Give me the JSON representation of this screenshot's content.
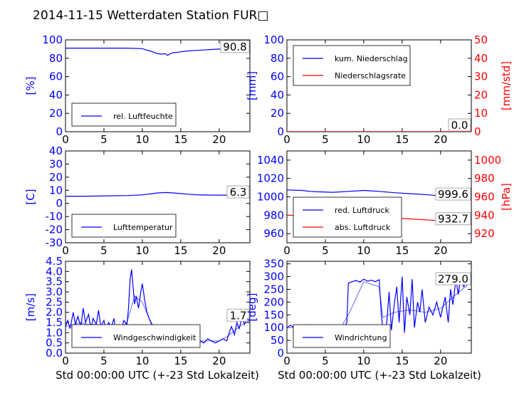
{
  "figure": {
    "title": "2014-11-15 Wetterdaten Station FUR□",
    "colors": {
      "left_axis": "#0000ff",
      "right_axis": "#ff0000",
      "precip_rate": "#ff0000",
      "abs_pressure": "#ff0000",
      "windspeed_avg": "#8080ff",
      "winddir_avg": "#8080ff"
    }
  },
  "chart_data": [
    {
      "id": "humidity",
      "type": "line",
      "xlim": [
        0,
        24
      ],
      "x_ticks": [
        0,
        5,
        10,
        15,
        20
      ],
      "ylabel": "[%]",
      "ylim": [
        0,
        100
      ],
      "y_ticks": [
        0,
        20,
        40,
        60,
        80,
        100
      ],
      "legend": "bottom-left",
      "last_value": "90.8",
      "series": [
        {
          "name": "rel. Luftfeuchte",
          "axis": "left",
          "color": "#0000ff",
          "x": [
            0,
            2,
            4,
            6,
            8,
            10,
            10.5,
            11,
            11.5,
            12,
            12.5,
            13,
            13.3,
            13.6,
            14,
            15,
            16,
            17,
            18,
            19,
            20,
            21,
            22,
            23,
            24
          ],
          "y": [
            91,
            91,
            91,
            91,
            91,
            90.5,
            89,
            88,
            86.5,
            85,
            84.5,
            85,
            83,
            85,
            86,
            87,
            88,
            88.5,
            89,
            89.5,
            90,
            90.3,
            90.5,
            90.8,
            90.8
          ]
        }
      ]
    },
    {
      "id": "precipitation",
      "type": "line",
      "xlim": [
        0,
        24
      ],
      "x_ticks": [
        0,
        5,
        10,
        15,
        20
      ],
      "ylabel": "[mm]",
      "ylim": [
        0,
        100
      ],
      "y_ticks": [
        0,
        20,
        40,
        60,
        80,
        100
      ],
      "ylabel2": "[mm/std]",
      "ylim2": [
        0,
        50
      ],
      "y_ticks2": [
        0,
        10,
        20,
        30,
        40,
        50
      ],
      "legend": "top-left",
      "last_value": "0.0",
      "last_value2": "0.0",
      "series": [
        {
          "name": "kum. Niederschlag",
          "axis": "left",
          "color": "#0000ff",
          "x": [
            0,
            24
          ],
          "y": [
            0,
            0
          ]
        },
        {
          "name": "Niederschlagsrate",
          "axis": "right",
          "color": "#ff0000",
          "x": [
            0,
            24
          ],
          "y": [
            0,
            0
          ]
        }
      ]
    },
    {
      "id": "temperature",
      "type": "line",
      "xlim": [
        0,
        24
      ],
      "x_ticks": [
        0,
        5,
        10,
        15,
        20
      ],
      "ylabel": "[C]",
      "ylim": [
        -30,
        40
      ],
      "y_ticks": [
        -30,
        -20,
        -10,
        0,
        10,
        20,
        30,
        40
      ],
      "legend": "bottom-left",
      "last_value": "6.3",
      "series": [
        {
          "name": "Lufttemperatur",
          "axis": "left",
          "color": "#0000ff",
          "x": [
            0,
            2,
            4,
            6,
            8,
            10,
            11,
            12,
            13,
            14,
            15,
            16,
            17,
            18,
            20,
            22,
            24
          ],
          "y": [
            5.5,
            5.5,
            5.6,
            5.8,
            6.0,
            6.5,
            7.2,
            8.0,
            8.3,
            8.0,
            7.5,
            7.0,
            6.6,
            6.4,
            6.3,
            6.3,
            6.3
          ]
        }
      ]
    },
    {
      "id": "pressure",
      "type": "line",
      "xlim": [
        0,
        24
      ],
      "x_ticks": [
        0,
        5,
        10,
        15,
        20
      ],
      "ylim": [
        950,
        1050
      ],
      "y_ticks": [
        960,
        980,
        1000,
        1020,
        1040
      ],
      "ylabel2": "[hPa]",
      "ylim2": [
        910,
        1010
      ],
      "y_ticks2": [
        920,
        940,
        960,
        980,
        1000
      ],
      "legend": "bottom-left",
      "last_value": "999.6",
      "last_value2": "932.7",
      "series": [
        {
          "name": "red. Luftdruck",
          "axis": "left",
          "color": "#0000ff",
          "x": [
            0,
            1,
            2,
            3,
            4,
            6,
            8,
            10,
            11,
            12,
            14,
            16,
            18,
            20,
            22,
            24
          ],
          "y": [
            1007.5,
            1007.3,
            1007,
            1006,
            1005.5,
            1005,
            1006,
            1007,
            1006.5,
            1006,
            1004.5,
            1003.5,
            1002.5,
            1001,
            1000,
            999.6
          ]
        },
        {
          "name": "abs. Luftdruck",
          "axis": "right",
          "color": "#ff0000",
          "x": [
            0,
            1,
            2,
            4,
            6,
            8,
            10,
            12,
            14,
            16,
            18,
            20,
            22,
            24
          ],
          "y": [
            940,
            939.8,
            939.5,
            938.5,
            938,
            938,
            938.5,
            938,
            937,
            936,
            935,
            934,
            933,
            932.7
          ]
        }
      ]
    },
    {
      "id": "windspeed",
      "type": "line",
      "xlim": [
        0,
        24
      ],
      "x_ticks": [
        0,
        5,
        10,
        15,
        20
      ],
      "ylabel": "[m/s]",
      "ylim": [
        0,
        4.5
      ],
      "y_ticks": [
        0.0,
        0.5,
        1.0,
        1.5,
        2.0,
        2.5,
        3.0,
        3.5,
        4.0,
        4.5
      ],
      "legend": "bottom-left",
      "last_value": "1.7",
      "series": [
        {
          "name": "Windgeschwindigkeit",
          "axis": "left",
          "color": "#0000ff",
          "x": [
            0,
            0.3,
            0.6,
            1,
            1.3,
            1.6,
            2,
            2.3,
            2.6,
            3,
            3.3,
            3.6,
            4,
            4.3,
            4.6,
            5,
            5.3,
            5.6,
            6,
            6.3,
            6.6,
            7,
            7.3,
            7.6,
            8,
            8.2,
            8.4,
            8.6,
            8.8,
            9,
            9.2,
            9.5,
            9.8,
            10,
            10.3,
            10.6,
            11,
            11.3,
            11.6,
            12,
            12.3,
            12.6,
            13,
            13.3,
            13.6,
            14,
            14.5,
            15,
            15.5,
            16,
            16.5,
            17,
            17.5,
            18,
            18.5,
            19,
            19.5,
            20,
            20.5,
            21,
            21.3,
            21.6,
            22,
            22.3,
            22.6,
            23,
            23.3,
            23.6,
            24
          ],
          "y": [
            1.3,
            1.6,
            1.2,
            2.0,
            1.4,
            1.8,
            1.3,
            2.2,
            1.5,
            1.9,
            1.2,
            1.7,
            1.4,
            2.1,
            1.3,
            1.6,
            1.1,
            1.5,
            1.3,
            1.7,
            1.0,
            1.4,
            1.2,
            1.6,
            1.4,
            2.2,
            3.6,
            4.1,
            3.2,
            2.4,
            2.8,
            2.2,
            3.0,
            3.4,
            2.6,
            2.0,
            1.6,
            1.3,
            1.0,
            0.9,
            1.1,
            0.8,
            0.6,
            1.0,
            0.5,
            0.8,
            0.6,
            0.7,
            0.6,
            0.8,
            0.5,
            0.7,
            0.6,
            0.5,
            0.7,
            0.6,
            0.5,
            0.6,
            0.7,
            0.6,
            1.0,
            1.3,
            0.9,
            1.5,
            1.2,
            1.8,
            1.4,
            1.7,
            1.7
          ]
        },
        {
          "name": "",
          "axis": "left",
          "color": "#8080ff",
          "x": [
            0,
            1,
            2,
            3,
            4,
            5,
            6,
            7,
            8,
            9,
            10,
            11,
            12,
            13,
            14,
            15,
            16,
            17,
            18,
            19,
            20,
            21,
            22,
            23,
            24
          ],
          "y": [
            1.3,
            1.4,
            1.5,
            1.4,
            1.4,
            1.3,
            1.3,
            1.2,
            1.5,
            2.8,
            2.5,
            1.6,
            1.0,
            0.8,
            0.7,
            0.7,
            0.7,
            0.6,
            0.6,
            0.6,
            0.6,
            0.8,
            1.1,
            1.4,
            1.6
          ]
        }
      ]
    },
    {
      "id": "winddirection",
      "type": "line",
      "xlim": [
        0,
        24
      ],
      "x_ticks": [
        0,
        5,
        10,
        15,
        20
      ],
      "ylabel": "[deg]",
      "ylim": [
        0,
        360
      ],
      "y_ticks": [
        0,
        50,
        100,
        150,
        200,
        250,
        300,
        350
      ],
      "legend": "bottom-left",
      "last_value": "279.0",
      "series": [
        {
          "name": "Windrichtung",
          "axis": "left",
          "color": "#0000ff",
          "x": [
            0,
            0.5,
            1,
            1.5,
            2,
            2.5,
            3,
            3.5,
            4,
            4.5,
            5,
            5.5,
            6,
            6.5,
            7,
            7.5,
            7.8,
            8,
            8.5,
            9,
            9.5,
            10,
            10.5,
            11,
            11.5,
            12,
            12.3,
            12.6,
            13,
            13.3,
            13.6,
            14,
            14.3,
            14.6,
            15,
            15.3,
            15.6,
            16,
            16.3,
            16.6,
            17,
            17.3,
            17.6,
            18,
            18.5,
            19,
            19.5,
            20,
            20.3,
            20.6,
            21,
            21.3,
            21.6,
            22,
            22.3,
            22.6,
            23,
            23.5,
            24
          ],
          "y": [
            100,
            110,
            95,
            105,
            100,
            112,
            98,
            104,
            100,
            108,
            96,
            103,
            100,
            110,
            99,
            104,
            120,
            275,
            280,
            285,
            278,
            290,
            282,
            286,
            280,
            288,
            150,
            60,
            120,
            240,
            90,
            200,
            260,
            120,
            300,
            80,
            220,
            150,
            290,
            100,
            200,
            160,
            250,
            120,
            180,
            150,
            200,
            140,
            180,
            220,
            120,
            250,
            190,
            290,
            230,
            300,
            260,
            285,
            279
          ]
        },
        {
          "name": "",
          "axis": "left",
          "color": "#8080ff",
          "x": [
            0,
            2,
            4,
            6,
            7,
            8,
            10,
            12,
            12.5,
            14,
            16,
            18,
            20,
            22,
            24
          ],
          "y": [
            100,
            102,
            100,
            98,
            100,
            150,
            280,
            260,
            140,
            160,
            170,
            160,
            175,
            230,
            279
          ]
        }
      ]
    }
  ],
  "axes_common": {
    "xlabel": "Std 00:00:00 UTC (+-23 Std Lokalzeit)"
  }
}
